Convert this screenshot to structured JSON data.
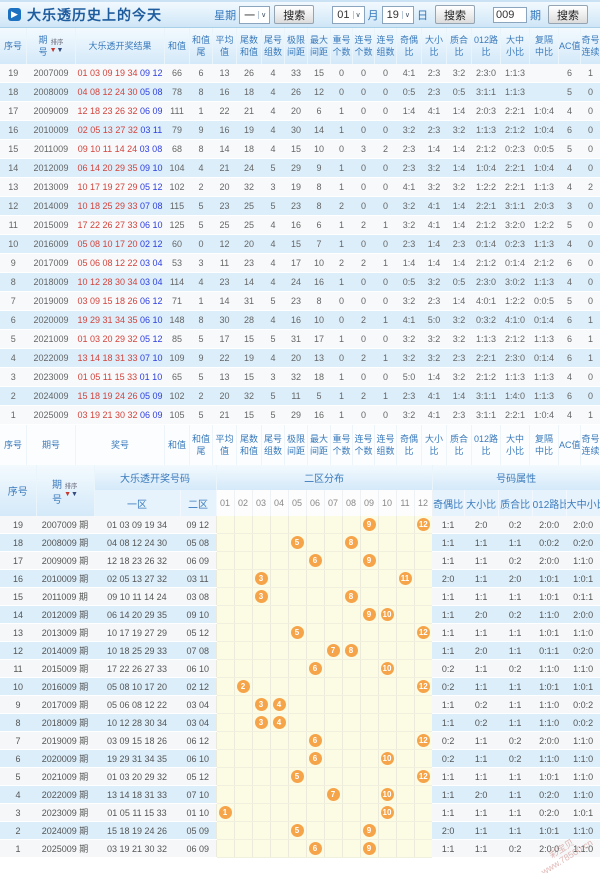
{
  "colors": {
    "accent_red": "#d4433c",
    "accent_blue": "#2e3ee0",
    "ball_orange": "#f6a44a",
    "header_blue": "#3a7abc"
  },
  "titlebar": {
    "title": "大乐透历史上的今天"
  },
  "controls": {
    "week_label": "星期",
    "week_value": "一",
    "search_label": "搜索",
    "month_value": "01",
    "month_label": "月",
    "day_value": "19",
    "day_label": "日",
    "issue_value": "009",
    "issue_label": "期",
    "sort_label": "排序"
  },
  "table1": {
    "columns": [
      [
        "序号"
      ],
      [
        "期",
        "号"
      ],
      [
        "大乐透开奖结果"
      ],
      [
        "和值"
      ],
      [
        "和值",
        "尾"
      ],
      [
        "平均",
        "值"
      ],
      [
        "尾数",
        "和值"
      ],
      [
        "尾号",
        "组数"
      ],
      [
        "极限",
        "间距"
      ],
      [
        "最大",
        "间距"
      ],
      [
        "重号",
        "个数"
      ],
      [
        "连号",
        "个数"
      ],
      [
        "连号",
        "组数"
      ],
      [
        "奇偶",
        "比"
      ],
      [
        "大小",
        "比"
      ],
      [
        "质合",
        "比"
      ],
      [
        "012路",
        "比"
      ],
      [
        "大中",
        "小比"
      ],
      [
        "复隔",
        "中比"
      ],
      [
        "AC值"
      ],
      [
        "奇号",
        "连续"
      ],
      [
        "偶号",
        "连续"
      ]
    ],
    "footer_columns": [
      [
        "序号"
      ],
      [
        "期号"
      ],
      [
        "奖号"
      ],
      [
        "和值"
      ],
      [
        "和值",
        "尾"
      ],
      [
        "平均",
        "值"
      ],
      [
        "尾数",
        "和值"
      ],
      [
        "尾号",
        "组数"
      ],
      [
        "极限",
        "间距"
      ],
      [
        "最大",
        "间距"
      ],
      [
        "重号",
        "个数"
      ],
      [
        "连号",
        "个数"
      ],
      [
        "连号",
        "组数"
      ],
      [
        "奇偶",
        "比"
      ],
      [
        "大小",
        "比"
      ],
      [
        "质合",
        "比"
      ],
      [
        "012路",
        "比"
      ],
      [
        "大中",
        "小比"
      ],
      [
        "复隔",
        "中比"
      ],
      [
        "AC值"
      ],
      [
        "奇号",
        "连续"
      ],
      [
        "偶号",
        "连续"
      ]
    ],
    "rows": [
      {
        "seq": "19",
        "issue": "2007009",
        "front": "01 03 09 19 34",
        "back": "09 12",
        "vals": [
          "66",
          "6",
          "13",
          "26",
          "4",
          "33",
          "15",
          "0",
          "0",
          "0",
          "4:1",
          "2:3",
          "3:2",
          "2:3:0",
          "1:1:3",
          "",
          "6",
          "1",
          "0"
        ]
      },
      {
        "seq": "18",
        "issue": "2008009",
        "front": "04 08 12 24 30",
        "back": "05 08",
        "vals": [
          "78",
          "8",
          "16",
          "18",
          "4",
          "26",
          "12",
          "0",
          "0",
          "0",
          "0:5",
          "2:3",
          "0:5",
          "3:1:1",
          "1:1:3",
          "",
          "5",
          "0",
          "0"
        ]
      },
      {
        "seq": "17",
        "issue": "2009009",
        "front": "12 18 23 26 32",
        "back": "06 09",
        "vals": [
          "111",
          "1",
          "22",
          "21",
          "4",
          "20",
          "6",
          "1",
          "0",
          "0",
          "1:4",
          "4:1",
          "1:4",
          "2:0:3",
          "2:2:1",
          "1:0:4",
          "4",
          "0",
          "0"
        ]
      },
      {
        "seq": "16",
        "issue": "2010009",
        "front": "02 05 13 27 32",
        "back": "03 11",
        "vals": [
          "79",
          "9",
          "16",
          "19",
          "4",
          "30",
          "14",
          "1",
          "0",
          "0",
          "3:2",
          "2:3",
          "3:2",
          "1:1:3",
          "2:1:2",
          "1:0:4",
          "6",
          "0",
          "0"
        ]
      },
      {
        "seq": "15",
        "issue": "2011009",
        "front": "09 10 11 14 24",
        "back": "03 08",
        "vals": [
          "68",
          "8",
          "14",
          "18",
          "4",
          "15",
          "10",
          "0",
          "3",
          "2",
          "2:3",
          "1:4",
          "1:4",
          "2:1:2",
          "0:2:3",
          "0:0:5",
          "5",
          "0",
          "0"
        ]
      },
      {
        "seq": "14",
        "issue": "2012009",
        "front": "06 14 20 29 35",
        "back": "09 10",
        "vals": [
          "104",
          "4",
          "21",
          "24",
          "5",
          "29",
          "9",
          "1",
          "0",
          "0",
          "2:3",
          "3:2",
          "1:4",
          "1:0:4",
          "2:2:1",
          "1:0:4",
          "4",
          "0",
          "0"
        ]
      },
      {
        "seq": "13",
        "issue": "2013009",
        "front": "10 17 19 27 29",
        "back": "05 12",
        "vals": [
          "102",
          "2",
          "20",
          "32",
          "3",
          "19",
          "8",
          "1",
          "0",
          "0",
          "4:1",
          "3:2",
          "3:2",
          "1:2:2",
          "2:2:1",
          "1:1:3",
          "4",
          "2",
          "0"
        ]
      },
      {
        "seq": "12",
        "issue": "2014009",
        "front": "10 18 25 29 33",
        "back": "07 08",
        "vals": [
          "115",
          "5",
          "23",
          "25",
          "5",
          "23",
          "8",
          "2",
          "0",
          "0",
          "3:2",
          "4:1",
          "1:4",
          "2:2:1",
          "3:1:1",
          "2:0:3",
          "3",
          "0",
          "0"
        ]
      },
      {
        "seq": "11",
        "issue": "2015009",
        "front": "17 22 26 27 33",
        "back": "06 10",
        "vals": [
          "125",
          "5",
          "25",
          "25",
          "4",
          "16",
          "6",
          "1",
          "2",
          "1",
          "3:2",
          "4:1",
          "1:4",
          "2:1:2",
          "3:2:0",
          "1:2:2",
          "5",
          "0",
          "0"
        ]
      },
      {
        "seq": "10",
        "issue": "2016009",
        "front": "05 08 10 17 20",
        "back": "02 12",
        "vals": [
          "60",
          "0",
          "12",
          "20",
          "4",
          "15",
          "7",
          "1",
          "0",
          "0",
          "2:3",
          "1:4",
          "2:3",
          "0:1:4",
          "0:2:3",
          "1:1:3",
          "4",
          "0",
          "1"
        ]
      },
      {
        "seq": "9",
        "issue": "2017009",
        "front": "05 06 08 12 22",
        "back": "03 04",
        "vals": [
          "53",
          "3",
          "11",
          "23",
          "4",
          "17",
          "10",
          "2",
          "2",
          "1",
          "1:4",
          "1:4",
          "1:4",
          "2:1:2",
          "0:1:4",
          "2:1:2",
          "6",
          "0",
          "1"
        ]
      },
      {
        "seq": "8",
        "issue": "2018009",
        "front": "10 12 28 30 34",
        "back": "03 04",
        "vals": [
          "114",
          "4",
          "23",
          "14",
          "4",
          "24",
          "16",
          "1",
          "0",
          "0",
          "0:5",
          "3:2",
          "0:5",
          "2:3:0",
          "3:0:2",
          "1:1:3",
          "4",
          "0",
          "2"
        ]
      },
      {
        "seq": "7",
        "issue": "2019009",
        "front": "03 09 15 18 26",
        "back": "06 12",
        "vals": [
          "71",
          "1",
          "14",
          "31",
          "5",
          "23",
          "8",
          "0",
          "0",
          "0",
          "3:2",
          "2:3",
          "1:4",
          "4:0:1",
          "1:2:2",
          "0:0:5",
          "5",
          "0",
          "0"
        ]
      },
      {
        "seq": "6",
        "issue": "2020009",
        "front": "19 29 31 34 35",
        "back": "06 10",
        "vals": [
          "148",
          "8",
          "30",
          "28",
          "4",
          "16",
          "10",
          "0",
          "2",
          "1",
          "4:1",
          "5:0",
          "3:2",
          "0:3:2",
          "4:1:0",
          "0:1:4",
          "6",
          "1",
          "0"
        ]
      },
      {
        "seq": "5",
        "issue": "2021009",
        "front": "01 03 20 29 32",
        "back": "05 12",
        "vals": [
          "85",
          "5",
          "17",
          "15",
          "5",
          "31",
          "17",
          "1",
          "0",
          "0",
          "3:2",
          "3:2",
          "3:2",
          "1:1:3",
          "2:1:2",
          "1:1:3",
          "6",
          "1",
          "0"
        ]
      },
      {
        "seq": "4",
        "issue": "2022009",
        "front": "13 14 18 31 33",
        "back": "07 10",
        "vals": [
          "109",
          "9",
          "22",
          "19",
          "4",
          "20",
          "13",
          "0",
          "2",
          "1",
          "3:2",
          "3:2",
          "2:3",
          "2:2:1",
          "2:3:0",
          "0:1:4",
          "6",
          "1",
          "0"
        ]
      },
      {
        "seq": "3",
        "issue": "2023009",
        "front": "01 05 11 15 33",
        "back": "01 10",
        "vals": [
          "65",
          "5",
          "13",
          "15",
          "3",
          "32",
          "18",
          "1",
          "0",
          "0",
          "5:0",
          "1:4",
          "3:2",
          "2:1:2",
          "1:1:3",
          "1:1:3",
          "4",
          "0",
          "0"
        ]
      },
      {
        "seq": "2",
        "issue": "2024009",
        "front": "15 18 19 24 26",
        "back": "05 09",
        "vals": [
          "102",
          "2",
          "20",
          "32",
          "5",
          "11",
          "5",
          "1",
          "2",
          "1",
          "2:3",
          "4:1",
          "1:4",
          "3:1:1",
          "1:4:0",
          "1:1:3",
          "6",
          "0",
          "1"
        ]
      },
      {
        "seq": "1",
        "issue": "2025009",
        "front": "03 19 21 30 32",
        "back": "06 09",
        "vals": [
          "105",
          "5",
          "21",
          "15",
          "5",
          "29",
          "16",
          "1",
          "0",
          "0",
          "3:2",
          "4:1",
          "2:3",
          "3:1:1",
          "2:2:1",
          "1:0:4",
          "4",
          "1",
          "1"
        ]
      }
    ]
  },
  "table2": {
    "group_headers": {
      "seq": "序号",
      "issue": [
        "期",
        "号"
      ],
      "result": "大乐透开奖号码",
      "zone": "二区分布",
      "attrs": "号码属性"
    },
    "front_label": "一区",
    "back_label": "二区",
    "zone_cols": [
      "01",
      "02",
      "03",
      "04",
      "05",
      "06",
      "07",
      "08",
      "09",
      "10",
      "11",
      "12"
    ],
    "attr_cols": [
      "奇偶比",
      "大小比",
      "质合比",
      "012路比",
      "大中小比"
    ],
    "rows": [
      {
        "seq": "19",
        "issue": "2007009 期",
        "front": "01 03 09 19 34",
        "back": "09 12",
        "balls": [
          9,
          12
        ],
        "attrs": [
          "1:1",
          "2:0",
          "0:2",
          "2:0:0",
          "2:0:0"
        ]
      },
      {
        "seq": "18",
        "issue": "2008009 期",
        "front": "04 08 12 24 30",
        "back": "05 08",
        "balls": [
          5,
          8
        ],
        "attrs": [
          "1:1",
          "1:1",
          "1:1",
          "0:0:2",
          "0:2:0"
        ]
      },
      {
        "seq": "17",
        "issue": "2009009 期",
        "front": "12 18 23 26 32",
        "back": "06 09",
        "balls": [
          6,
          9
        ],
        "attrs": [
          "1:1",
          "1:1",
          "0:2",
          "2:0:0",
          "1:1:0"
        ]
      },
      {
        "seq": "16",
        "issue": "2010009 期",
        "front": "02 05 13 27 32",
        "back": "03 11",
        "balls": [
          3,
          11
        ],
        "attrs": [
          "2:0",
          "1:1",
          "2:0",
          "1:0:1",
          "1:0:1"
        ]
      },
      {
        "seq": "15",
        "issue": "2011009 期",
        "front": "09 10 11 14 24",
        "back": "03 08",
        "balls": [
          3,
          8
        ],
        "attrs": [
          "1:1",
          "1:1",
          "1:1",
          "1:0:1",
          "0:1:1"
        ]
      },
      {
        "seq": "14",
        "issue": "2012009 期",
        "front": "06 14 20 29 35",
        "back": "09 10",
        "balls": [
          9,
          10
        ],
        "attrs": [
          "1:1",
          "2:0",
          "0:2",
          "1:1:0",
          "2:0:0"
        ]
      },
      {
        "seq": "13",
        "issue": "2013009 期",
        "front": "10 17 19 27 29",
        "back": "05 12",
        "balls": [
          5,
          12
        ],
        "attrs": [
          "1:1",
          "1:1",
          "1:1",
          "1:0:1",
          "1:1:0"
        ]
      },
      {
        "seq": "12",
        "issue": "2014009 期",
        "front": "10 18 25 29 33",
        "back": "07 08",
        "balls": [
          7,
          8
        ],
        "attrs": [
          "1:1",
          "2:0",
          "1:1",
          "0:1:1",
          "0:2:0"
        ]
      },
      {
        "seq": "11",
        "issue": "2015009 期",
        "front": "17 22 26 27 33",
        "back": "06 10",
        "balls": [
          6,
          10
        ],
        "attrs": [
          "0:2",
          "1:1",
          "0:2",
          "1:1:0",
          "1:1:0"
        ]
      },
      {
        "seq": "10",
        "issue": "2016009 期",
        "front": "05 08 10 17 20",
        "back": "02 12",
        "balls": [
          2,
          12
        ],
        "attrs": [
          "0:2",
          "1:1",
          "1:1",
          "1:0:1",
          "1:0:1"
        ]
      },
      {
        "seq": "9",
        "issue": "2017009 期",
        "front": "05 06 08 12 22",
        "back": "03 04",
        "balls": [
          3,
          4
        ],
        "attrs": [
          "1:1",
          "0:2",
          "1:1",
          "1:1:0",
          "0:0:2"
        ]
      },
      {
        "seq": "8",
        "issue": "2018009 期",
        "front": "10 12 28 30 34",
        "back": "03 04",
        "balls": [
          3,
          4
        ],
        "attrs": [
          "1:1",
          "0:2",
          "1:1",
          "1:1:0",
          "0:0:2"
        ]
      },
      {
        "seq": "7",
        "issue": "2019009 期",
        "front": "03 09 15 18 26",
        "back": "06 12",
        "balls": [
          6,
          12
        ],
        "attrs": [
          "0:2",
          "1:1",
          "0:2",
          "2:0:0",
          "1:1:0"
        ]
      },
      {
        "seq": "6",
        "issue": "2020009 期",
        "front": "19 29 31 34 35",
        "back": "06 10",
        "balls": [
          6,
          10
        ],
        "attrs": [
          "0:2",
          "1:1",
          "0:2",
          "1:1:0",
          "1:1:0"
        ]
      },
      {
        "seq": "5",
        "issue": "2021009 期",
        "front": "01 03 20 29 32",
        "back": "05 12",
        "balls": [
          5,
          12
        ],
        "attrs": [
          "1:1",
          "1:1",
          "1:1",
          "1:0:1",
          "1:1:0"
        ]
      },
      {
        "seq": "4",
        "issue": "2022009 期",
        "front": "13 14 18 31 33",
        "back": "07 10",
        "balls": [
          7,
          10
        ],
        "attrs": [
          "1:1",
          "2:0",
          "1:1",
          "0:2:0",
          "1:1:0"
        ]
      },
      {
        "seq": "3",
        "issue": "2023009 期",
        "front": "01 05 11 15 33",
        "back": "01 10",
        "balls": [
          1,
          10
        ],
        "attrs": [
          "1:1",
          "1:1",
          "1:1",
          "0:2:0",
          "1:0:1"
        ]
      },
      {
        "seq": "2",
        "issue": "2024009 期",
        "front": "15 18 19 24 26",
        "back": "05 09",
        "balls": [
          5,
          9
        ],
        "attrs": [
          "2:0",
          "1:1",
          "1:1",
          "1:0:1",
          "1:1:0"
        ]
      },
      {
        "seq": "1",
        "issue": "2025009 期",
        "front": "03 19 21 30 32",
        "back": "06 09",
        "balls": [
          6,
          9
        ],
        "attrs": [
          "1:1",
          "1:1",
          "0:2",
          "2:0:0",
          "1:1:0"
        ]
      }
    ]
  },
  "watermark": {
    "line1": "彩宝贝",
    "line2": "www.78500.cn"
  }
}
